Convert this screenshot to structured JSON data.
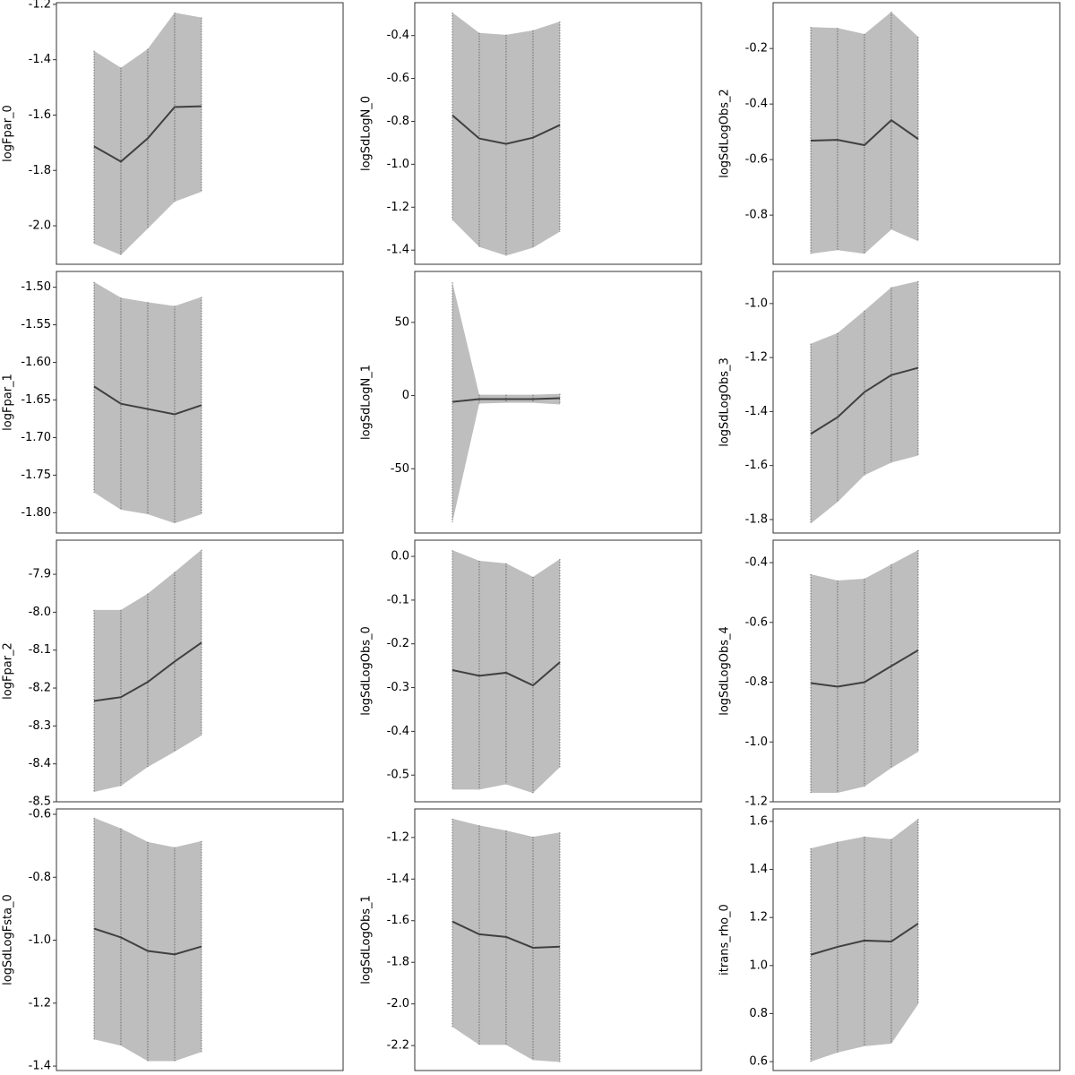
{
  "chart_data": [
    {
      "type": "band",
      "ylabel": "logFpar_0",
      "x": [
        0,
        1,
        2,
        3,
        4
      ],
      "xlim": [
        -1.4,
        9.27
      ],
      "ylim": [
        -2.139,
        -1.194
      ],
      "yticks": [
        -1.2,
        -1.4,
        -1.6,
        -1.8,
        {
          "value": -2.0,
          "label": "-2.0"
        }
      ],
      "values": [
        -1.713,
        -1.768,
        -1.684,
        -1.571,
        -1.568
      ],
      "upper": [
        -1.368,
        -1.429,
        -1.361,
        -1.23,
        -1.248
      ],
      "lower": [
        -2.065,
        -2.106,
        -2.01,
        -1.913,
        -1.877
      ],
      "color": "#404040",
      "band_color": "#bebebe"
    },
    {
      "type": "band",
      "ylabel": "logSdLogN_0",
      "x": [
        0,
        1,
        2,
        3,
        4
      ],
      "xlim": [
        -1.4,
        9.27
      ],
      "ylim": [
        -1.466,
        -0.247
      ],
      "yticks": [
        -0.4,
        -0.6,
        -0.8,
        {
          "value": -1.0,
          "label": "-1.0"
        },
        -1.2,
        -1.4
      ],
      "values": [
        -0.772,
        -0.88,
        -0.905,
        -0.876,
        -0.817
      ],
      "upper": [
        -0.293,
        -0.388,
        -0.397,
        -0.376,
        -0.335
      ],
      "lower": [
        -1.26,
        -1.385,
        -1.426,
        -1.389,
        -1.314
      ],
      "color": "#404040",
      "band_color": "#bebebe"
    },
    {
      "type": "band",
      "ylabel": "logSdLogObs_2",
      "x": [
        0,
        1,
        2,
        3,
        4
      ],
      "xlim": [
        -1.4,
        9.27
      ],
      "ylim": [
        -0.977,
        -0.035
      ],
      "yticks": [
        -0.2,
        -0.4,
        -0.6,
        -0.8
      ],
      "values": [
        -0.532,
        -0.529,
        -0.548,
        -0.458,
        -0.526
      ],
      "upper": [
        -0.123,
        -0.126,
        -0.148,
        -0.068,
        -0.158
      ],
      "lower": [
        -0.939,
        -0.926,
        -0.939,
        -0.852,
        -0.894
      ],
      "color": "#404040",
      "band_color": "#bebebe"
    },
    {
      "type": "band",
      "ylabel": "logFpar_1",
      "x": [
        0,
        1,
        2,
        3,
        4
      ],
      "xlim": [
        -1.4,
        9.27
      ],
      "ylim": [
        -1.827,
        -1.479
      ],
      "yticks": [
        {
          "value": -1.5,
          "label": "-1.50"
        },
        -1.55,
        {
          "value": -1.6,
          "label": "-1.60"
        },
        -1.65,
        {
          "value": -1.7,
          "label": "-1.70"
        },
        -1.75,
        {
          "value": -1.8,
          "label": "-1.80"
        }
      ],
      "values": [
        -1.632,
        -1.655,
        -1.662,
        -1.669,
        -1.657
      ],
      "upper": [
        -1.493,
        -1.514,
        -1.52,
        -1.525,
        -1.513
      ],
      "lower": [
        -1.773,
        -1.796,
        -1.802,
        -1.814,
        -1.802
      ],
      "color": "#404040",
      "band_color": "#bebebe"
    },
    {
      "type": "band",
      "ylabel": "logSdLogN_1",
      "x": [
        0,
        1,
        2,
        3,
        4
      ],
      "xlim": [
        -1.4,
        9.27
      ],
      "ylim": [
        -93.9,
        84.8
      ],
      "yticks": [
        50,
        0,
        -50
      ],
      "values": [
        -4.3,
        -2.4,
        -2.4,
        -2.4,
        -1.8
      ],
      "upper": [
        77.4,
        0.6,
        0.6,
        0.6,
        1.2
      ],
      "lower": [
        -86.6,
        -5.5,
        -4.9,
        -4.9,
        -6.1
      ],
      "color": "#404040",
      "band_color": "#bebebe"
    },
    {
      "type": "band",
      "ylabel": "logSdLogObs_3",
      "x": [
        0,
        1,
        2,
        3,
        4
      ],
      "xlim": [
        -1.4,
        9.27
      ],
      "ylim": [
        -1.85,
        -0.881
      ],
      "yticks": [
        {
          "value": -1.0,
          "label": "-1.0"
        },
        -1.2,
        -1.4,
        -1.6,
        -1.8
      ],
      "values": [
        -1.483,
        -1.421,
        -1.328,
        -1.265,
        -1.238
      ],
      "upper": [
        -1.149,
        -1.109,
        -1.026,
        -0.94,
        -0.917
      ],
      "lower": [
        -1.815,
        -1.735,
        -1.636,
        -1.589,
        -1.563
      ],
      "color": "#404040",
      "band_color": "#bebebe"
    },
    {
      "type": "band",
      "ylabel": "logFpar_2",
      "x": [
        0,
        1,
        2,
        3,
        4
      ],
      "xlim": [
        -1.4,
        9.27
      ],
      "ylim": [
        -8.5,
        -7.81
      ],
      "yticks": [
        -7.9,
        {
          "value": -8.0,
          "label": "-8.0"
        },
        -8.1,
        -8.2,
        -8.3,
        -8.4,
        -8.5
      ],
      "values": [
        -8.234,
        -8.224,
        -8.184,
        -8.13,
        -8.08
      ],
      "upper": [
        -7.994,
        -7.994,
        -7.951,
        -7.894,
        -7.835
      ],
      "lower": [
        -8.474,
        -8.458,
        -8.408,
        -8.368,
        -8.325
      ],
      "color": "#404040",
      "band_color": "#bebebe"
    },
    {
      "type": "band",
      "ylabel": "logSdLogObs_0",
      "x": [
        0,
        1,
        2,
        3,
        4
      ],
      "xlim": [
        -1.4,
        9.27
      ],
      "ylim": [
        -0.561,
        0.037
      ],
      "yticks": [
        {
          "value": 0,
          "label": "0.0"
        },
        -0.1,
        -0.2,
        -0.3,
        -0.4,
        -0.5
      ],
      "values": [
        -0.26,
        -0.273,
        -0.266,
        -0.295,
        -0.242
      ],
      "upper": [
        0.014,
        -0.01,
        -0.016,
        -0.047,
        -0.006
      ],
      "lower": [
        -0.533,
        -0.533,
        -0.521,
        -0.541,
        -0.482
      ],
      "color": "#404040",
      "band_color": "#bebebe"
    },
    {
      "type": "band",
      "ylabel": "logSdLogObs_4",
      "x": [
        0,
        1,
        2,
        3,
        4
      ],
      "xlim": [
        -1.4,
        9.27
      ],
      "ylim": [
        -1.2,
        -0.325
      ],
      "yticks": [
        -0.4,
        -0.6,
        -0.8,
        {
          "value": -1.0,
          "label": "-1.0"
        },
        -1.2
      ],
      "values": [
        -0.803,
        -0.815,
        -0.8,
        -0.746,
        -0.693
      ],
      "upper": [
        -0.439,
        -0.46,
        -0.454,
        -0.406,
        -0.358
      ],
      "lower": [
        -1.17,
        -1.17,
        -1.149,
        -1.087,
        -1.033
      ],
      "color": "#404040",
      "band_color": "#bebebe"
    },
    {
      "type": "band",
      "ylabel": "logSdLogFsta_0",
      "x": [
        0,
        1,
        2,
        3,
        4
      ],
      "xlim": [
        -1.4,
        9.27
      ],
      "ylim": [
        -1.414,
        -0.583
      ],
      "yticks": [
        -0.6,
        -0.8,
        {
          "value": -1.0,
          "label": "-1.0"
        },
        -1.2,
        -1.4
      ],
      "values": [
        -0.963,
        -0.991,
        -1.034,
        -1.045,
        -1.02
      ],
      "upper": [
        -0.611,
        -0.645,
        -0.688,
        -0.705,
        -0.685
      ],
      "lower": [
        -1.315,
        -1.335,
        -1.384,
        -1.384,
        -1.355
      ],
      "color": "#404040",
      "band_color": "#bebebe"
    },
    {
      "type": "band",
      "ylabel": "logSdLogObs_1",
      "x": [
        0,
        1,
        2,
        3,
        4
      ],
      "xlim": [
        -1.4,
        9.27
      ],
      "ylim": [
        -2.32,
        -1.063
      ],
      "yticks": [
        -1.2,
        -1.4,
        -1.6,
        -1.8,
        {
          "value": -2.0,
          "label": "-2.0"
        },
        -2.2
      ],
      "values": [
        -1.604,
        -1.665,
        -1.678,
        -1.73,
        -1.725
      ],
      "upper": [
        -1.11,
        -1.142,
        -1.167,
        -1.197,
        -1.176
      ],
      "lower": [
        -2.11,
        -2.197,
        -2.197,
        -2.27,
        -2.279
      ],
      "color": "#404040",
      "band_color": "#bebebe"
    },
    {
      "type": "band",
      "ylabel": "itrans_rho_0",
      "x": [
        0,
        1,
        2,
        3,
        4
      ],
      "xlim": [
        -1.4,
        9.27
      ],
      "ylim": [
        0.563,
        1.652
      ],
      "yticks": [
        1.6,
        1.4,
        1.2,
        {
          "value": 1.0,
          "label": "1.0"
        },
        0.8,
        0.6
      ],
      "values": [
        1.045,
        1.078,
        1.104,
        1.1,
        1.175
      ],
      "upper": [
        1.488,
        1.515,
        1.537,
        1.526,
        1.611
      ],
      "lower": [
        0.6,
        0.638,
        0.664,
        0.675,
        0.839
      ],
      "color": "#404040",
      "band_color": "#bebebe"
    }
  ]
}
